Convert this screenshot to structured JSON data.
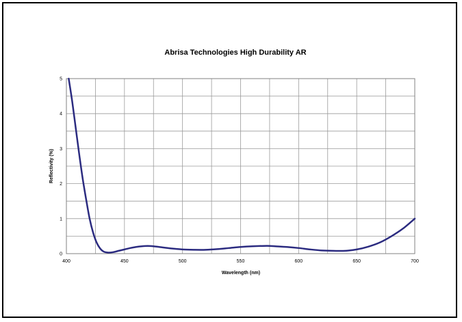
{
  "chart_data": {
    "type": "line",
    "title": "Abrisa Technologies High Durability AR",
    "xlabel": "Wavelength (nm)",
    "ylabel": "Reflectivity (%)",
    "xlim": [
      400,
      700
    ],
    "ylim": [
      0,
      5
    ],
    "x_ticks": [
      400,
      450,
      500,
      550,
      600,
      650,
      700
    ],
    "y_ticks": [
      0,
      1,
      2,
      3,
      4,
      5
    ],
    "x_minor_step": 25,
    "y_minor_step": 0.5,
    "grid": true,
    "legend": "none",
    "series": [
      {
        "color": "#2b2b80",
        "x": [
          402,
          405,
          408,
          411,
          414,
          417,
          420,
          423,
          426,
          429,
          432,
          436,
          440,
          445,
          450,
          455,
          460,
          465,
          470,
          475,
          480,
          490,
          500,
          510,
          520,
          530,
          540,
          550,
          560,
          570,
          575,
          580,
          590,
          600,
          610,
          620,
          630,
          640,
          650,
          660,
          670,
          680,
          690,
          700
        ],
        "y": [
          5.0,
          4.35,
          3.6,
          2.85,
          2.15,
          1.55,
          1.0,
          0.6,
          0.32,
          0.15,
          0.06,
          0.03,
          0.04,
          0.08,
          0.12,
          0.16,
          0.19,
          0.21,
          0.22,
          0.21,
          0.19,
          0.15,
          0.12,
          0.11,
          0.11,
          0.13,
          0.16,
          0.19,
          0.21,
          0.22,
          0.22,
          0.21,
          0.19,
          0.16,
          0.12,
          0.09,
          0.08,
          0.08,
          0.12,
          0.2,
          0.32,
          0.5,
          0.72,
          1.0
        ]
      }
    ]
  }
}
